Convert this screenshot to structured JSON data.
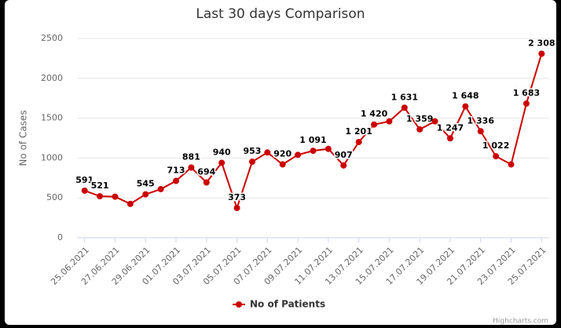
{
  "chart_data": {
    "type": "line",
    "title": "Last 30 days Comparison",
    "y_label": "No of Cases",
    "categories": [
      "25.06.2021",
      null,
      "27.06.2021",
      null,
      "29.06.2021",
      null,
      "01.07.2021",
      null,
      "03.07.2021",
      null,
      "05.07.2021",
      null,
      "07.07.2021",
      null,
      "09.07.2021",
      null,
      "11.07.2021",
      null,
      "13.07.2021",
      null,
      "15.07.2021",
      null,
      "17.07.2021",
      null,
      "19.07.2021",
      null,
      "21.07.2021",
      null,
      "23.07.2021",
      null,
      "25.07.2021"
    ],
    "series": [
      {
        "name": "No of Patients",
        "color": "#cc0000",
        "values": [
          591,
          521,
          515,
          425,
          545,
          610,
          713,
          881,
          694,
          940,
          373,
          953,
          1070,
          920,
          1040,
          1091,
          1115,
          907,
          1201,
          1420,
          1460,
          1631,
          1359,
          1460,
          1247,
          1648,
          1336,
          1022,
          920,
          1683,
          2308
        ],
        "value_labels": [
          "591",
          "521",
          null,
          null,
          "545",
          null,
          "713",
          "881",
          "694",
          "940",
          "373",
          "953",
          null,
          "920",
          null,
          "1 091",
          null,
          "907",
          "1 201",
          "1 420",
          null,
          "1 631",
          "1 359",
          null,
          "1 247",
          "1 648",
          "1 336",
          "1 022",
          null,
          "1 683",
          "2 308"
        ]
      }
    ],
    "ylim": [
      0,
      2500
    ],
    "yticks": [
      0,
      500,
      1000,
      1500,
      2000,
      2500
    ],
    "grid": true,
    "legend": "bottom",
    "credits": "Highcharts.com"
  }
}
